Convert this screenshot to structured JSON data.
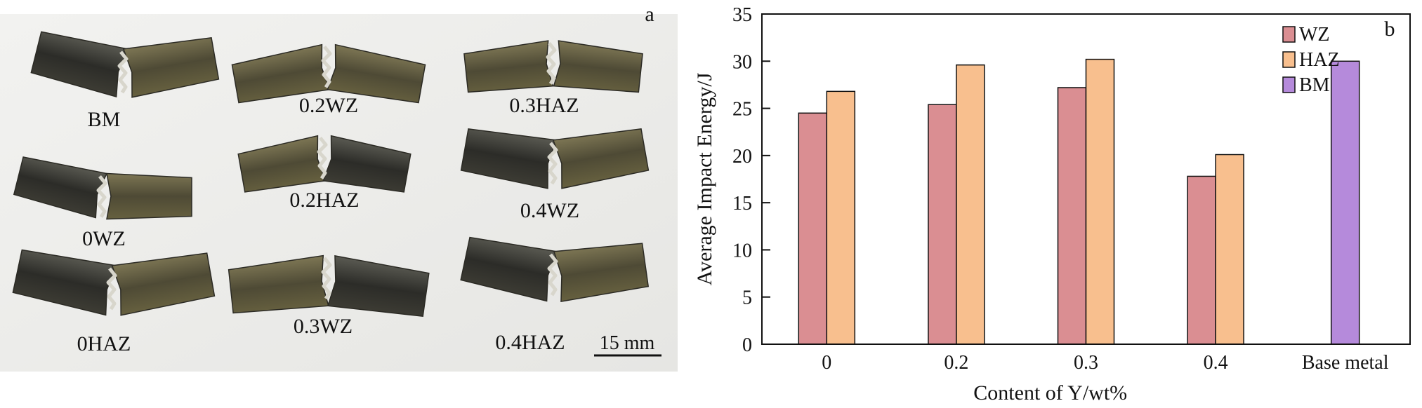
{
  "photo": {
    "panel_label": "a",
    "scale_bar": "15 mm",
    "specimens": [
      "BM",
      "0.2WZ",
      "0.3HAZ",
      "0.2HAZ",
      "0.4WZ",
      "0WZ",
      "0HAZ",
      "0.3WZ",
      "0.4HAZ"
    ]
  },
  "chart_data": {
    "type": "bar",
    "panel_label": "b",
    "title": "",
    "xlabel": "Content of Y/wt%",
    "ylabel": "Average Impact Energy/J",
    "categories": [
      "0",
      "0.2",
      "0.3",
      "0.4",
      "Base metal"
    ],
    "ylim": [
      0,
      35
    ],
    "yticks": [
      0,
      5,
      10,
      15,
      20,
      25,
      30,
      35
    ],
    "grid": false,
    "legend_position": "top-right",
    "series": [
      {
        "name": "WZ",
        "color": "#DA8E92",
        "values": [
          24.5,
          25.4,
          27.2,
          17.8,
          null
        ]
      },
      {
        "name": "HAZ",
        "color": "#F8BF8E",
        "values": [
          26.8,
          29.6,
          30.2,
          20.1,
          null
        ]
      },
      {
        "name": "BM",
        "color": "#B58ADB",
        "values": [
          null,
          null,
          null,
          null,
          30.0
        ]
      }
    ]
  }
}
